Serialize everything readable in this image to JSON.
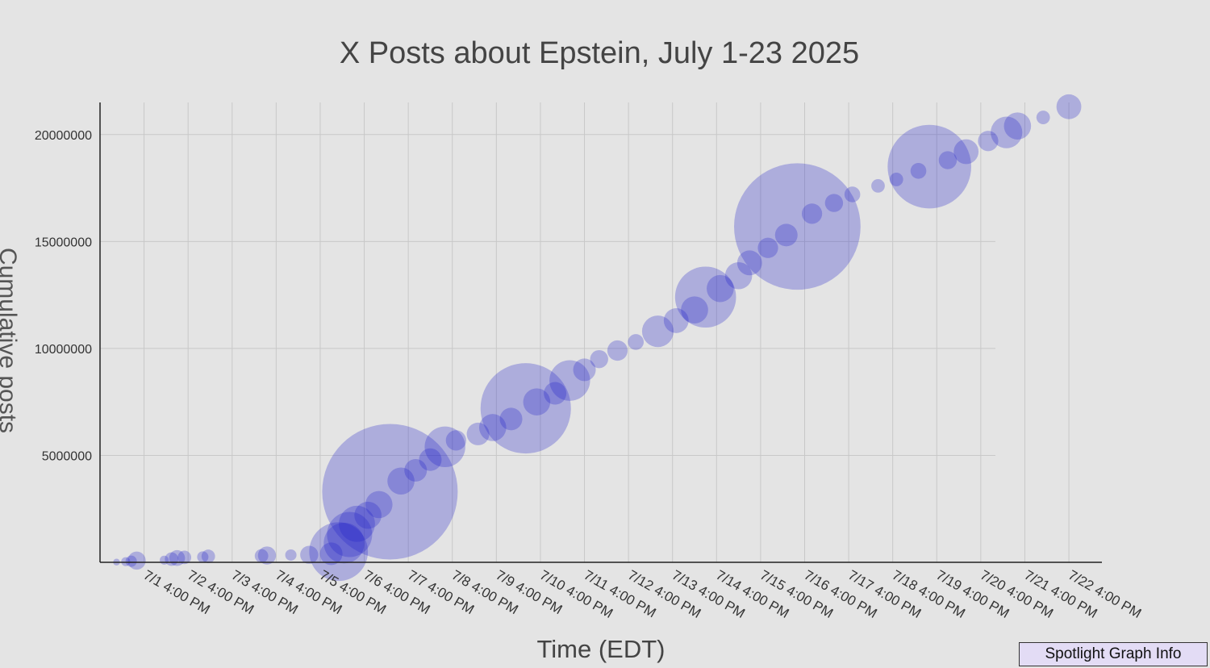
{
  "chart_data": {
    "type": "scatter",
    "title": "X Posts about Epstein, July 1-23 2025",
    "xlabel": "Time (EDT)",
    "ylabel": "Cumulative posts",
    "x_unit": "date-time (EDT)",
    "xlim": [
      "2025-06-30T16:00",
      "2025-07-23T10:00"
    ],
    "ylim": [
      0,
      21500000
    ],
    "grid": true,
    "legend": "none",
    "point_color": "#2020c8",
    "x_ticks": [
      "7/1 4:00 PM",
      "7/2 4:00 PM",
      "7/3 4:00 PM",
      "7/4 4:00 PM",
      "7/5 4:00 PM",
      "7/6 4:00 PM",
      "7/7 4:00 PM",
      "7/8 4:00 PM",
      "7/9 4:00 PM",
      "7/10 4:00 PM",
      "7/11 4:00 PM",
      "7/12 4:00 PM",
      "7/13 4:00 PM",
      "7/14 4:00 PM",
      "7/15 4:00 PM",
      "7/16 4:00 PM",
      "7/17 4:00 PM",
      "7/18 4:00 PM",
      "7/19 4:00 PM",
      "7/20 4:00 PM",
      "7/21 4:00 PM",
      "7/22 4:00 PM"
    ],
    "x_tick_times": [
      "2025-07-01T16:00",
      "2025-07-02T16:00",
      "2025-07-03T16:00",
      "2025-07-04T16:00",
      "2025-07-05T16:00",
      "2025-07-06T16:00",
      "2025-07-07T16:00",
      "2025-07-08T16:00",
      "2025-07-09T16:00",
      "2025-07-10T16:00",
      "2025-07-11T16:00",
      "2025-07-12T16:00",
      "2025-07-13T16:00",
      "2025-07-14T16:00",
      "2025-07-15T16:00",
      "2025-07-16T16:00",
      "2025-07-17T16:00",
      "2025-07-18T16:00",
      "2025-07-19T16:00",
      "2025-07-20T16:00",
      "2025-07-21T16:00",
      "2025-07-22T16:00"
    ],
    "y_ticks": [
      5000000,
      10000000,
      15000000,
      20000000
    ],
    "y_tick_labels": [
      "5000000",
      "10000000",
      "15000000",
      "20000000"
    ],
    "points": [
      [
        "2025-07-01T01:00",
        10000,
        0.15
      ],
      [
        "2025-07-01T06:00",
        30000,
        0.2
      ],
      [
        "2025-07-01T09:00",
        50000,
        0.25
      ],
      [
        "2025-07-01T12:00",
        80000,
        0.4
      ],
      [
        "2025-07-02T03:00",
        100000,
        0.2
      ],
      [
        "2025-07-02T07:00",
        150000,
        0.3
      ],
      [
        "2025-07-02T10:00",
        200000,
        0.35
      ],
      [
        "2025-07-02T14:00",
        230000,
        0.3
      ],
      [
        "2025-07-03T00:00",
        250000,
        0.25
      ],
      [
        "2025-07-03T03:00",
        280000,
        0.3
      ],
      [
        "2025-07-04T08:00",
        300000,
        0.3
      ],
      [
        "2025-07-04T11:00",
        320000,
        0.4
      ],
      [
        "2025-07-05T00:00",
        340000,
        0.25
      ],
      [
        "2025-07-05T10:00",
        350000,
        0.4
      ],
      [
        "2025-07-05T22:00",
        400000,
        0.5
      ],
      [
        "2025-07-06T02:00",
        500000,
        1.3
      ],
      [
        "2025-07-06T05:00",
        900000,
        0.9
      ],
      [
        "2025-07-06T08:00",
        1300000,
        1.0
      ],
      [
        "2025-07-06T12:00",
        1800000,
        0.8
      ],
      [
        "2025-07-06T18:00",
        2200000,
        0.6
      ],
      [
        "2025-07-07T00:00",
        2700000,
        0.6
      ],
      [
        "2025-07-07T06:00",
        3300000,
        3.0
      ],
      [
        "2025-07-07T12:00",
        3800000,
        0.6
      ],
      [
        "2025-07-07T20:00",
        4300000,
        0.5
      ],
      [
        "2025-07-08T04:00",
        4800000,
        0.5
      ],
      [
        "2025-07-08T12:00",
        5400000,
        0.9
      ],
      [
        "2025-07-08T18:00",
        5700000,
        0.45
      ],
      [
        "2025-07-09T06:00",
        6000000,
        0.5
      ],
      [
        "2025-07-09T14:00",
        6300000,
        0.6
      ],
      [
        "2025-07-10T00:00",
        6700000,
        0.5
      ],
      [
        "2025-07-10T08:00",
        7200000,
        2.0
      ],
      [
        "2025-07-10T14:00",
        7500000,
        0.6
      ],
      [
        "2025-07-11T00:00",
        7900000,
        0.5
      ],
      [
        "2025-07-11T08:00",
        8500000,
        0.9
      ],
      [
        "2025-07-11T16:00",
        9000000,
        0.5
      ],
      [
        "2025-07-12T00:00",
        9500000,
        0.4
      ],
      [
        "2025-07-12T10:00",
        9900000,
        0.45
      ],
      [
        "2025-07-12T20:00",
        10300000,
        0.35
      ],
      [
        "2025-07-13T08:00",
        10800000,
        0.7
      ],
      [
        "2025-07-13T18:00",
        11300000,
        0.55
      ],
      [
        "2025-07-14T04:00",
        11800000,
        0.6
      ],
      [
        "2025-07-14T10:00",
        12400000,
        1.35
      ],
      [
        "2025-07-14T18:00",
        12800000,
        0.6
      ],
      [
        "2025-07-15T04:00",
        13400000,
        0.6
      ],
      [
        "2025-07-15T10:00",
        14000000,
        0.55
      ],
      [
        "2025-07-15T20:00",
        14700000,
        0.45
      ],
      [
        "2025-07-16T06:00",
        15300000,
        0.5
      ],
      [
        "2025-07-16T12:00",
        15700000,
        2.8
      ],
      [
        "2025-07-16T20:00",
        16300000,
        0.45
      ],
      [
        "2025-07-17T08:00",
        16800000,
        0.4
      ],
      [
        "2025-07-17T18:00",
        17200000,
        0.35
      ],
      [
        "2025-07-18T08:00",
        17600000,
        0.3
      ],
      [
        "2025-07-18T18:00",
        17900000,
        0.3
      ],
      [
        "2025-07-19T06:00",
        18300000,
        0.35
      ],
      [
        "2025-07-19T12:00",
        18500000,
        1.85
      ],
      [
        "2025-07-19T22:00",
        18800000,
        0.4
      ],
      [
        "2025-07-20T08:00",
        19200000,
        0.55
      ],
      [
        "2025-07-20T20:00",
        19700000,
        0.45
      ],
      [
        "2025-07-21T06:00",
        20100000,
        0.7
      ],
      [
        "2025-07-21T12:00",
        20400000,
        0.6
      ],
      [
        "2025-07-22T02:00",
        20800000,
        0.3
      ],
      [
        "2025-07-22T16:00",
        21300000,
        0.55
      ]
    ]
  },
  "info_button": {
    "label": "Spotlight Graph Info"
  }
}
